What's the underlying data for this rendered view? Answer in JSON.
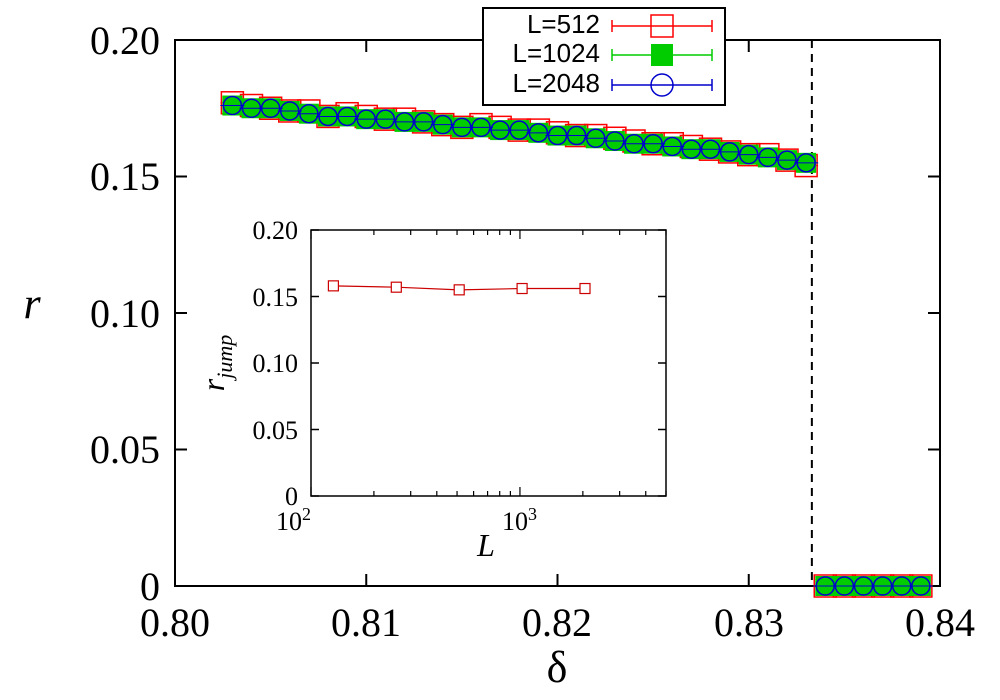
{
  "chart_data": [
    {
      "type": "scatter",
      "title": "",
      "xlabel": "δ",
      "ylabel": "r",
      "xlim": [
        0.8,
        0.84
      ],
      "ylim": [
        0,
        0.2
      ],
      "xticks": [
        "0.80",
        "0.81",
        "0.82",
        "0.83",
        "0.84"
      ],
      "yticks": [
        "0",
        "0.05",
        "0.10",
        "0.15",
        "0.20"
      ],
      "transition_line_x": 0.8333,
      "legend_position": "top-center",
      "series": [
        {
          "name": "L=512",
          "marker": "open-square",
          "color": "#ff0000",
          "x": [
            0.803,
            0.804,
            0.805,
            0.806,
            0.807,
            0.808,
            0.809,
            0.81,
            0.811,
            0.812,
            0.813,
            0.814,
            0.815,
            0.816,
            0.817,
            0.818,
            0.819,
            0.82,
            0.821,
            0.822,
            0.823,
            0.824,
            0.825,
            0.826,
            0.827,
            0.828,
            0.829,
            0.83,
            0.831,
            0.832,
            0.833,
            0.834,
            0.835,
            0.836,
            0.837,
            0.838,
            0.839
          ],
          "y": [
            0.177,
            0.176,
            0.175,
            0.174,
            0.174,
            0.172,
            0.173,
            0.172,
            0.171,
            0.171,
            0.17,
            0.169,
            0.168,
            0.169,
            0.168,
            0.167,
            0.167,
            0.166,
            0.165,
            0.165,
            0.164,
            0.163,
            0.162,
            0.162,
            0.161,
            0.16,
            0.159,
            0.158,
            0.158,
            0.156,
            0.154,
            0,
            0,
            0,
            0,
            0,
            0
          ]
        },
        {
          "name": "L=1024",
          "marker": "filled-square",
          "color": "#00cc00",
          "x": [
            0.803,
            0.804,
            0.805,
            0.806,
            0.807,
            0.808,
            0.809,
            0.81,
            0.811,
            0.812,
            0.813,
            0.814,
            0.815,
            0.816,
            0.817,
            0.818,
            0.819,
            0.82,
            0.821,
            0.822,
            0.823,
            0.824,
            0.825,
            0.826,
            0.827,
            0.828,
            0.829,
            0.83,
            0.831,
            0.832,
            0.833,
            0.834,
            0.835,
            0.836,
            0.837,
            0.838,
            0.839
          ],
          "y": [
            0.176,
            0.175,
            0.175,
            0.174,
            0.173,
            0.172,
            0.172,
            0.171,
            0.171,
            0.17,
            0.17,
            0.169,
            0.168,
            0.168,
            0.167,
            0.167,
            0.166,
            0.165,
            0.165,
            0.164,
            0.163,
            0.162,
            0.162,
            0.161,
            0.16,
            0.16,
            0.159,
            0.158,
            0.157,
            0.156,
            0.155,
            0,
            0,
            0,
            0,
            0,
            0
          ]
        },
        {
          "name": "L=2048",
          "marker": "open-circle",
          "color": "#0000cc",
          "x": [
            0.803,
            0.804,
            0.805,
            0.806,
            0.807,
            0.808,
            0.809,
            0.81,
            0.811,
            0.812,
            0.813,
            0.814,
            0.815,
            0.816,
            0.817,
            0.818,
            0.819,
            0.82,
            0.821,
            0.822,
            0.823,
            0.824,
            0.825,
            0.826,
            0.827,
            0.828,
            0.829,
            0.83,
            0.831,
            0.832,
            0.833,
            0.834,
            0.835,
            0.836,
            0.837,
            0.838,
            0.839
          ],
          "y": [
            0.176,
            0.175,
            0.175,
            0.174,
            0.173,
            0.172,
            0.172,
            0.171,
            0.171,
            0.17,
            0.17,
            0.169,
            0.168,
            0.168,
            0.167,
            0.167,
            0.166,
            0.165,
            0.165,
            0.164,
            0.163,
            0.162,
            0.162,
            0.161,
            0.16,
            0.16,
            0.159,
            0.158,
            0.157,
            0.156,
            0.155,
            0,
            0,
            0,
            0,
            0,
            0
          ]
        }
      ]
    },
    {
      "type": "line",
      "title": "",
      "xlabel": "L",
      "ylabel": "r",
      "ylabel_subscript": "jump",
      "xscale": "log",
      "xlim": [
        100,
        5000
      ],
      "ylim": [
        0,
        0.2
      ],
      "xtick_base": "10",
      "xtick_exponents": [
        "2",
        "3"
      ],
      "yticks": [
        "0",
        "0.05",
        "0.10",
        "0.15",
        "0.20"
      ],
      "series": [
        {
          "name": "r_jump",
          "marker": "open-square",
          "color": "#cc0000",
          "x": [
            128,
            256,
            512,
            1024,
            2048
          ],
          "y": [
            0.158,
            0.157,
            0.155,
            0.156,
            0.156
          ]
        }
      ]
    }
  ]
}
